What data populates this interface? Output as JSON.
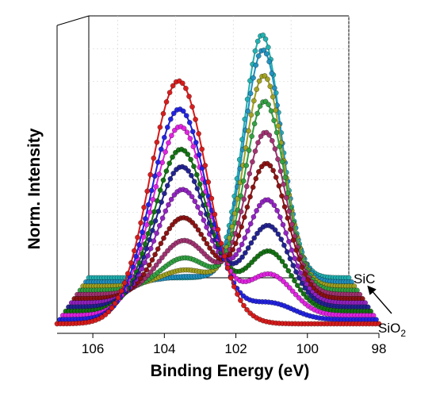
{
  "chart_data": {
    "type": "line",
    "style": "3D waterfall (stacked traces with depth offset), ball markers on each data point",
    "xlabel": "Binding Energy (eV)",
    "ylabel": "Norm. Intensity",
    "x_reversed": true,
    "xlim": [
      107,
      98
    ],
    "x_ticks": [
      "106",
      "104",
      "102",
      "100",
      "98"
    ],
    "x_tick_values": [
      106,
      104,
      102,
      100,
      98
    ],
    "ylim": [
      0,
      1
    ],
    "grid": true,
    "legend": "none",
    "annotations": {
      "top_series_label": "SiC",
      "bottom_series_label_base": "SiO",
      "bottom_series_label_sub": "2",
      "arrow": "from bottom (SiO2) trace to back (SiC) trace"
    },
    "peak_model": {
      "sio2_center": 103.6,
      "sic_center": 101.0,
      "sigma_sio2": 0.8,
      "sigma_sic": 0.65
    },
    "series": [
      {
        "color": "#d81818",
        "sio2_weight": 0.9,
        "sic_weight": 0.0
      },
      {
        "color": "#2020e0",
        "sio2_weight": 0.78,
        "sic_weight": 0.06
      },
      {
        "color": "#e020e0",
        "sio2_weight": 0.7,
        "sic_weight": 0.15
      },
      {
        "color": "#107010",
        "sio2_weight": 0.6,
        "sic_weight": 0.22
      },
      {
        "color": "#202090",
        "sio2_weight": 0.52,
        "sic_weight": 0.3
      },
      {
        "color": "#9020c0",
        "sio2_weight": 0.42,
        "sic_weight": 0.38
      },
      {
        "color": "#8b1010",
        "sio2_weight": 0.3,
        "sic_weight": 0.5
      },
      {
        "color": "#a03070",
        "sio2_weight": 0.2,
        "sic_weight": 0.6
      },
      {
        "color": "#30a040",
        "sio2_weight": 0.12,
        "sic_weight": 0.7
      },
      {
        "color": "#a0a020",
        "sio2_weight": 0.06,
        "sic_weight": 0.78
      },
      {
        "color": "#2090c0",
        "sio2_weight": 0.02,
        "sic_weight": 0.86
      },
      {
        "color": "#20b0b0",
        "sio2_weight": 0.0,
        "sic_weight": 0.9
      }
    ]
  }
}
